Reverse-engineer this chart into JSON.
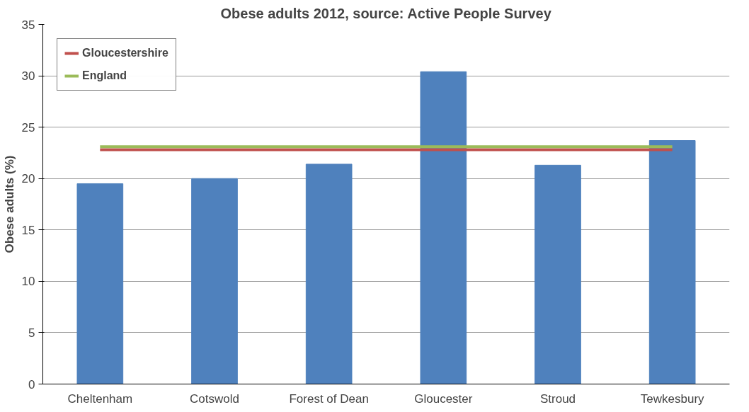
{
  "chart_data": {
    "type": "bar",
    "title": "Obese adults 2012, source: Active People Survey",
    "ylabel": "Obese adults (%)",
    "categories": [
      "Cheltenham",
      "Cotswold",
      "Forest of Dean",
      "Gloucester",
      "Stroud",
      "Tewkesbury"
    ],
    "series": [
      {
        "color": "#4f81bd",
        "values": [
          19.5,
          20.0,
          21.4,
          30.4,
          21.3,
          23.7
        ]
      },
      {
        "type": "line",
        "name": "Gloucestershire",
        "color": "#c0504d",
        "values": [
          22.8,
          22.8,
          22.8,
          22.8,
          22.8,
          22.8
        ]
      },
      {
        "type": "line",
        "name": "England",
        "color": "#9bbb59",
        "values": [
          23.1,
          23.1,
          23.1,
          23.1,
          23.1,
          23.1
        ]
      }
    ],
    "ylim": [
      0,
      35
    ],
    "yticks": [
      0,
      5,
      10,
      15,
      20,
      25,
      30,
      35
    ],
    "grid": "y",
    "legend": "top left"
  }
}
